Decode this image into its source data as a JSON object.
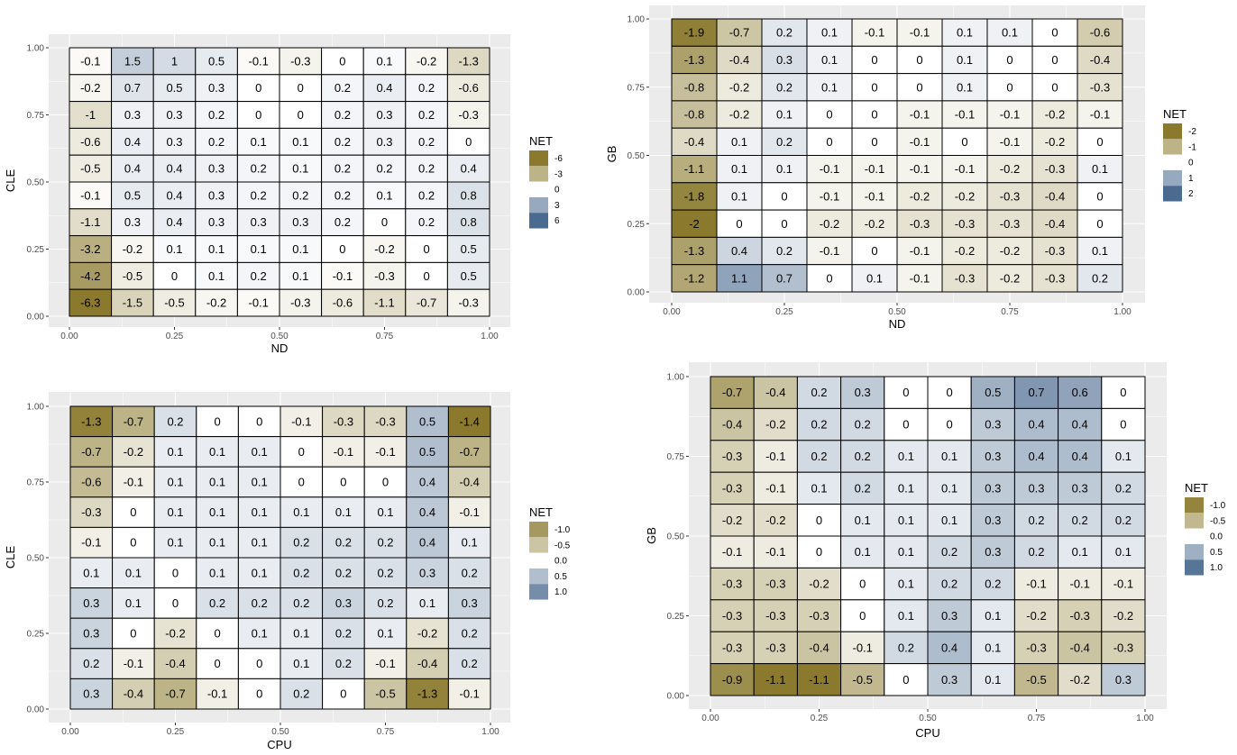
{
  "chart_data": [
    {
      "id": "p1",
      "type": "heatmap",
      "xlabel": "ND",
      "ylabel": "CLE",
      "xticks": [
        "0.00",
        "0.25",
        "0.50",
        "0.75",
        "1.00"
      ],
      "yticks": [
        "0.00",
        "0.25",
        "0.50",
        "0.75",
        "1.00"
      ],
      "xlim": [
        0,
        1
      ],
      "ylim": [
        0,
        1
      ],
      "legend": {
        "title": "NET",
        "labels": [
          "-6",
          "-3",
          "0",
          "3",
          "6"
        ],
        "min": -6,
        "max": 6
      },
      "rows_top_to_bottom": [
        [
          -0.1,
          1.5,
          1,
          0.5,
          -0.1,
          -0.3,
          0,
          0.1,
          -0.2,
          -1.3
        ],
        [
          -0.2,
          0.7,
          0.5,
          0.3,
          0,
          0,
          0.2,
          0.4,
          0.2,
          -0.6
        ],
        [
          -1,
          0.3,
          0.3,
          0.2,
          0,
          0,
          0.2,
          0.3,
          0.2,
          -0.3
        ],
        [
          -0.6,
          0.4,
          0.3,
          0.2,
          0.1,
          0.1,
          0.2,
          0.3,
          0.2,
          0
        ],
        [
          -0.5,
          0.4,
          0.4,
          0.3,
          0.2,
          0.1,
          0.2,
          0.2,
          0.2,
          0.4
        ],
        [
          -0.1,
          0.5,
          0.4,
          0.3,
          0.2,
          0.2,
          0.2,
          0.1,
          0.2,
          0.8
        ],
        [
          -1.1,
          0.3,
          0.4,
          0.3,
          0.3,
          0.3,
          0.2,
          0,
          0.2,
          0.8
        ],
        [
          -3.2,
          -0.2,
          0.1,
          0.1,
          0.1,
          0.1,
          0,
          -0.2,
          0,
          0.5
        ],
        [
          -4.2,
          -0.5,
          0,
          0.1,
          0.2,
          0.1,
          -0.1,
          -0.3,
          0,
          0.5
        ],
        [
          -6.3,
          -1.5,
          -0.5,
          -0.2,
          -0.1,
          -0.3,
          -0.6,
          -1.1,
          -0.7,
          -0.3
        ]
      ]
    },
    {
      "id": "p2",
      "type": "heatmap",
      "xlabel": "ND",
      "ylabel": "GB",
      "xticks": [
        "0.00",
        "0.25",
        "0.50",
        "0.75",
        "1.00"
      ],
      "yticks": [
        "0.00",
        "0.25",
        "0.50",
        "0.75",
        "1.00"
      ],
      "xlim": [
        0,
        1
      ],
      "ylim": [
        0,
        1
      ],
      "legend": {
        "title": "NET",
        "labels": [
          "-2",
          "-1",
          "0",
          "1",
          "2"
        ],
        "min": -2,
        "max": 2
      },
      "rows_top_to_bottom": [
        [
          -1.9,
          -0.7,
          0.2,
          0.1,
          -0.1,
          -0.1,
          0.1,
          0.1,
          0,
          -0.6
        ],
        [
          -1.3,
          -0.4,
          0.3,
          0.1,
          0,
          0,
          0.1,
          0,
          0,
          -0.4
        ],
        [
          -0.8,
          -0.2,
          0.2,
          0.1,
          0,
          0,
          0.1,
          0,
          0,
          -0.3
        ],
        [
          -0.8,
          -0.2,
          0.1,
          0,
          0,
          -0.1,
          -0.1,
          -0.1,
          -0.2,
          -0.1
        ],
        [
          -0.4,
          0.1,
          0.2,
          0,
          0,
          -0.1,
          0,
          -0.1,
          -0.2,
          0
        ],
        [
          -1.1,
          0.1,
          0.1,
          -0.1,
          -0.1,
          -0.1,
          -0.1,
          -0.2,
          -0.3,
          0.1
        ],
        [
          -1.8,
          0.1,
          0,
          -0.1,
          -0.1,
          -0.2,
          -0.2,
          -0.3,
          -0.4,
          0
        ],
        [
          -2,
          0,
          0,
          -0.2,
          -0.2,
          -0.3,
          -0.3,
          -0.3,
          -0.4,
          0
        ],
        [
          -1.3,
          0.4,
          0.2,
          -0.1,
          0,
          -0.1,
          -0.2,
          -0.2,
          -0.3,
          0.1
        ],
        [
          -1.2,
          1.1,
          0.7,
          0,
          0.1,
          -0.1,
          -0.3,
          -0.2,
          -0.3,
          0.2
        ]
      ]
    },
    {
      "id": "p3",
      "type": "heatmap",
      "xlabel": "CPU",
      "ylabel": "CLE",
      "xticks": [
        "0.00",
        "0.25",
        "0.50",
        "0.75",
        "1.00"
      ],
      "yticks": [
        "0.00",
        "0.25",
        "0.50",
        "0.75",
        "1.00"
      ],
      "xlim": [
        0,
        1
      ],
      "ylim": [
        0,
        1
      ],
      "legend": {
        "title": "NET",
        "labels": [
          "-1.0",
          "-0.5",
          "0.0",
          "0.5",
          "1.0"
        ],
        "min": -1.4,
        "max": 1.4
      },
      "rows_top_to_bottom": [
        [
          -1.3,
          -0.7,
          0.2,
          0,
          0,
          -0.1,
          -0.3,
          -0.3,
          0.5,
          -1.4
        ],
        [
          -0.7,
          -0.2,
          0.1,
          0.1,
          0.1,
          0,
          -0.1,
          -0.1,
          0.5,
          -0.7
        ],
        [
          -0.6,
          -0.1,
          0.1,
          0.1,
          0.1,
          0,
          0,
          0,
          0.4,
          -0.4
        ],
        [
          -0.3,
          0,
          0.1,
          0.1,
          0.1,
          0.1,
          0.1,
          0.1,
          0.4,
          -0.1
        ],
        [
          -0.1,
          0,
          0.1,
          0.1,
          0.1,
          0.2,
          0.2,
          0.2,
          0.4,
          0.1
        ],
        [
          0.1,
          0.1,
          0,
          0.1,
          0.1,
          0.2,
          0.2,
          0.2,
          0.3,
          0.2
        ],
        [
          0.3,
          0.1,
          0,
          0.2,
          0.2,
          0.2,
          0.3,
          0.2,
          0.1,
          0.3
        ],
        [
          0.3,
          0,
          -0.2,
          0,
          0.1,
          0.1,
          0.2,
          0.1,
          -0.2,
          0.2
        ],
        [
          0.2,
          -0.1,
          -0.4,
          0,
          0,
          0.1,
          0.2,
          -0.1,
          -0.4,
          0.2
        ],
        [
          0.3,
          -0.4,
          -0.7,
          -0.1,
          0,
          0.2,
          0,
          -0.5,
          -1.3,
          -0.1
        ]
      ]
    },
    {
      "id": "p4",
      "type": "heatmap",
      "xlabel": "CPU",
      "ylabel": "GB",
      "xticks": [
        "0.00",
        "0.25",
        "0.50",
        "0.75",
        "1.00"
      ],
      "yticks": [
        "0.00",
        "0.25",
        "0.50",
        "0.75",
        "1.00"
      ],
      "xlim": [
        0,
        1
      ],
      "ylim": [
        0,
        1
      ],
      "legend": {
        "title": "NET",
        "labels": [
          "-1.0",
          "-0.5",
          "0.0",
          "0.5",
          "1.0"
        ],
        "min": -1.1,
        "max": 1.1
      },
      "rows_top_to_bottom": [
        [
          -0.7,
          -0.4,
          0.2,
          0.3,
          0,
          0,
          0.5,
          0.7,
          0.6,
          0
        ],
        [
          -0.4,
          -0.2,
          0.2,
          0.2,
          0,
          0,
          0.3,
          0.4,
          0.4,
          0
        ],
        [
          -0.3,
          -0.1,
          0.2,
          0.2,
          0.1,
          0.1,
          0.3,
          0.4,
          0.4,
          0.1
        ],
        [
          -0.3,
          -0.1,
          0.1,
          0.2,
          0.1,
          0.1,
          0.3,
          0.3,
          0.3,
          0.2
        ],
        [
          -0.2,
          -0.2,
          0,
          0.1,
          0.1,
          0.1,
          0.3,
          0.2,
          0.2,
          0.2
        ],
        [
          -0.1,
          -0.1,
          0,
          0.1,
          0.1,
          0.2,
          0.3,
          0.2,
          0.1,
          0.1
        ],
        [
          -0.3,
          -0.3,
          -0.2,
          0,
          0.1,
          0.2,
          0.2,
          -0.1,
          -0.1,
          -0.1
        ],
        [
          -0.3,
          -0.3,
          -0.3,
          0,
          0.1,
          0.3,
          0.1,
          -0.2,
          -0.3,
          -0.2
        ],
        [
          -0.3,
          -0.3,
          -0.4,
          -0.1,
          0.2,
          0.4,
          0.1,
          -0.3,
          -0.4,
          -0.3
        ],
        [
          -0.9,
          -1.1,
          -1.1,
          -0.5,
          0,
          0.3,
          0.1,
          -0.5,
          -0.2,
          0.3
        ]
      ]
    }
  ],
  "colors": {
    "low": "#8b7a2e",
    "mid": "#ffffff",
    "high": "#4a6a8f",
    "panel_bg": "#ebebeb",
    "grid": "#ffffff"
  }
}
